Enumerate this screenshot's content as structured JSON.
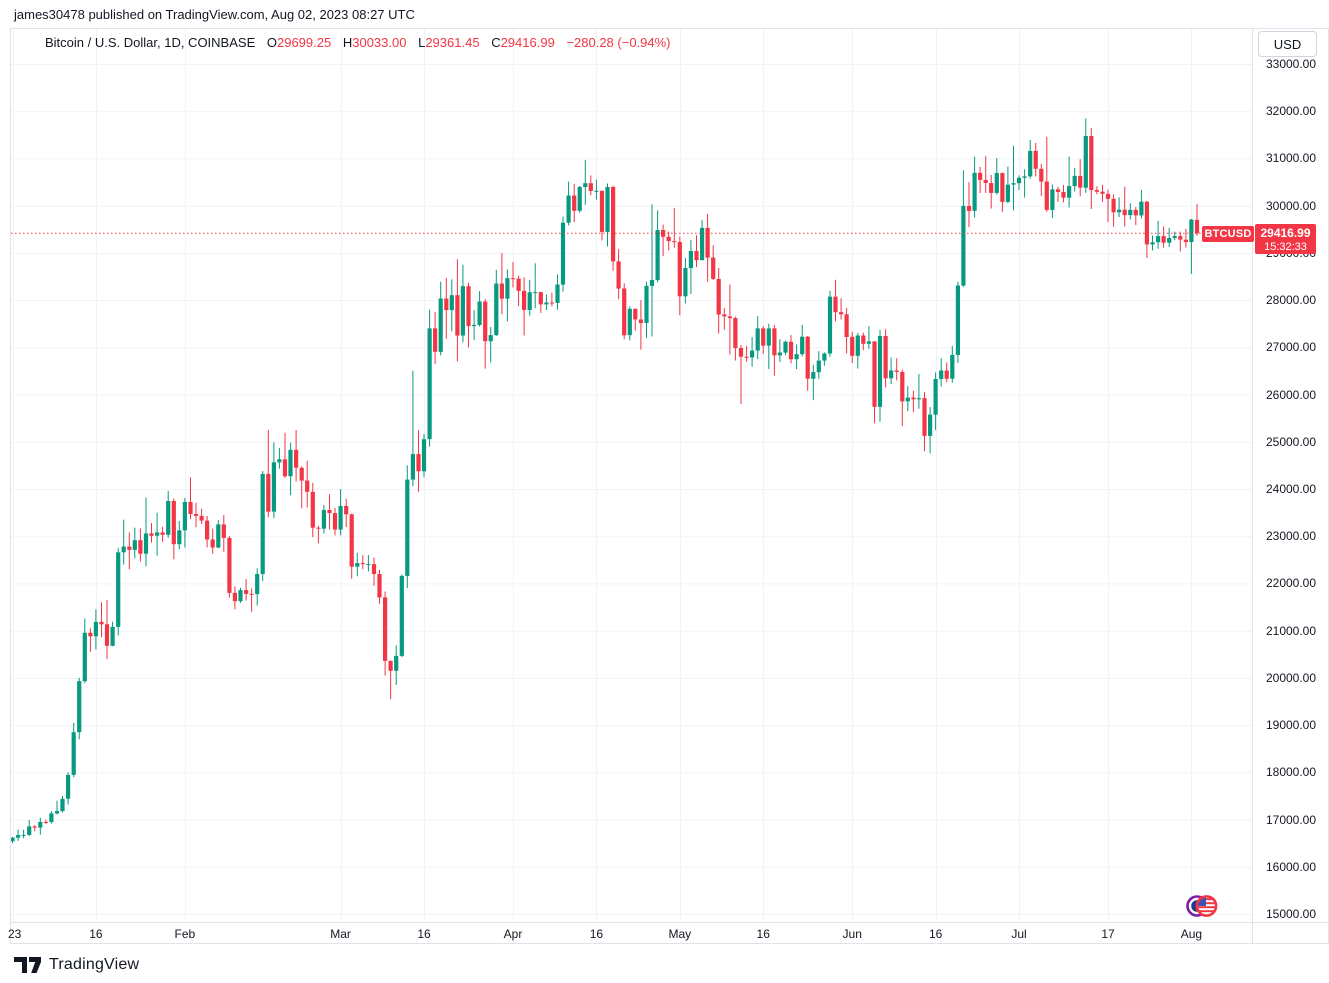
{
  "attribution": "james30478 published on TradingView.com, Aug 02, 2023 08:27 UTC",
  "header": {
    "symbol_title": "Bitcoin / U.S. Dollar, 1D, COINBASE",
    "ohlc": {
      "open_label": "O",
      "open": "29699.25",
      "high_label": "H",
      "high": "30033.00",
      "low_label": "L",
      "low": "29361.45",
      "close_label": "C",
      "close": "29416.99",
      "change": "−280.28 (−0.94%)"
    }
  },
  "price_axis": {
    "currency_button": "USD",
    "tick_labels": [
      "33000.00",
      "32000.00",
      "31000.00",
      "30000.00",
      "29000.00",
      "28000.00",
      "27000.00",
      "26000.00",
      "25000.00",
      "24000.00",
      "23000.00",
      "22000.00",
      "21000.00",
      "20000.00",
      "19000.00",
      "18000.00",
      "17000.00",
      "16000.00",
      "15000.00"
    ],
    "last_price_label": {
      "symbol": "BTCUSD",
      "price": "29416.99",
      "countdown": "15:32:33"
    }
  },
  "footer": {
    "brand": "TradingView"
  },
  "colors": {
    "up": "#089981",
    "down": "#f23645",
    "grid": "#f0f3fa",
    "frame": "#e0e3eb",
    "text": "#131722",
    "last_price_line": "#f23645",
    "tag_bg": "#f23645"
  },
  "chart_data": {
    "type": "candlestick",
    "title": "Bitcoin / U.S. Dollar, 1D, COINBASE",
    "symbol": "BTCUSD",
    "exchange": "COINBASE",
    "interval": "1D",
    "start_date": "2023-01-01",
    "end_date": "2023-08-02",
    "ylim": [
      15000,
      33000
    ],
    "y_ticks": [
      33000,
      32000,
      31000,
      30000,
      29000,
      28000,
      27000,
      26000,
      25000,
      24000,
      23000,
      22000,
      21000,
      20000,
      19000,
      18000,
      17000,
      16000,
      15000
    ],
    "x_ticks": [
      {
        "day": 0,
        "label": "23"
      },
      {
        "day": 15,
        "label": "16"
      },
      {
        "day": 31,
        "label": "Feb"
      },
      {
        "day": 59,
        "label": "Mar"
      },
      {
        "day": 74,
        "label": "16"
      },
      {
        "day": 90,
        "label": "Apr"
      },
      {
        "day": 105,
        "label": "16"
      },
      {
        "day": 120,
        "label": "May"
      },
      {
        "day": 135,
        "label": "16"
      },
      {
        "day": 151,
        "label": "Jun"
      },
      {
        "day": 166,
        "label": "16"
      },
      {
        "day": 181,
        "label": "Jul"
      },
      {
        "day": 197,
        "label": "17"
      },
      {
        "day": 212,
        "label": "Aug"
      }
    ],
    "last_price": 29416.99,
    "grid": true,
    "candles_format": [
      "open",
      "high",
      "low",
      "close"
    ],
    "candles": [
      [
        16540,
        16630,
        16500,
        16615
      ],
      [
        16615,
        16790,
        16550,
        16670
      ],
      [
        16670,
        16780,
        16600,
        16675
      ],
      [
        16675,
        16990,
        16650,
        16855
      ],
      [
        16855,
        16880,
        16750,
        16830
      ],
      [
        16830,
        17040,
        16680,
        16950
      ],
      [
        16950,
        17000,
        16910,
        16945
      ],
      [
        16945,
        17180,
        16915,
        17130
      ],
      [
        17130,
        17400,
        17110,
        17180
      ],
      [
        17180,
        17500,
        17150,
        17440
      ],
      [
        17440,
        18000,
        17315,
        17945
      ],
      [
        17945,
        19050,
        17900,
        18850
      ],
      [
        18850,
        20000,
        18700,
        19930
      ],
      [
        19930,
        21260,
        19890,
        20955
      ],
      [
        20955,
        21050,
        20550,
        20880
      ],
      [
        20880,
        21450,
        20600,
        21185
      ],
      [
        21185,
        21600,
        20860,
        21135
      ],
      [
        21135,
        21650,
        20400,
        20680
      ],
      [
        20680,
        21190,
        20670,
        21080
      ],
      [
        21080,
        22755,
        20900,
        22660
      ],
      [
        22660,
        23350,
        22400,
        22780
      ],
      [
        22780,
        23080,
        22300,
        22710
      ],
      [
        22710,
        23180,
        22530,
        22915
      ],
      [
        22915,
        23165,
        22465,
        22630
      ],
      [
        22630,
        23820,
        22360,
        23060
      ],
      [
        23060,
        23280,
        22865,
        23010
      ],
      [
        23010,
        23500,
        22590,
        23080
      ],
      [
        23080,
        23200,
        22880,
        23030
      ],
      [
        23030,
        23960,
        22970,
        23745
      ],
      [
        23745,
        23800,
        22510,
        22830
      ],
      [
        22830,
        23320,
        22720,
        23125
      ],
      [
        23125,
        23810,
        22760,
        23725
      ],
      [
        23725,
        24250,
        23370,
        23470
      ],
      [
        23470,
        23710,
        23190,
        23430
      ],
      [
        23430,
        23580,
        23260,
        23330
      ],
      [
        23330,
        23430,
        22760,
        22930
      ],
      [
        22930,
        23160,
        22630,
        22760
      ],
      [
        22760,
        23340,
        22745,
        23250
      ],
      [
        23250,
        23450,
        22670,
        22965
      ],
      [
        22965,
        23010,
        21700,
        21800
      ],
      [
        21800,
        21940,
        21450,
        21625
      ],
      [
        21625,
        21905,
        21590,
        21860
      ],
      [
        21860,
        22090,
        21640,
        21780
      ],
      [
        21780,
        21895,
        21400,
        21775
      ],
      [
        21775,
        22320,
        21530,
        22200
      ],
      [
        22200,
        24380,
        22050,
        24320
      ],
      [
        24320,
        25250,
        23400,
        23520
      ],
      [
        23520,
        24990,
        23380,
        24565
      ],
      [
        24565,
        24870,
        24430,
        24630
      ],
      [
        24630,
        25190,
        24230,
        24270
      ],
      [
        24270,
        24980,
        23870,
        24830
      ],
      [
        24830,
        25250,
        24160,
        24450
      ],
      [
        24450,
        24480,
        23590,
        24180
      ],
      [
        24180,
        24600,
        23610,
        23940
      ],
      [
        23940,
        24130,
        22980,
        23180
      ],
      [
        23180,
        23220,
        22850,
        23160
      ],
      [
        23160,
        23660,
        23060,
        23555
      ],
      [
        23555,
        23890,
        23140,
        23490
      ],
      [
        23490,
        23600,
        23020,
        23140
      ],
      [
        23140,
        24000,
        23020,
        23640
      ],
      [
        23640,
        23790,
        23195,
        23465
      ],
      [
        23465,
        23480,
        22100,
        22355
      ],
      [
        22355,
        22650,
        22155,
        22430
      ],
      [
        22430,
        22600,
        22300,
        22410
      ],
      [
        22410,
        22600,
        22255,
        22410
      ],
      [
        22410,
        22550,
        21950,
        22200
      ],
      [
        22200,
        22290,
        21570,
        21705
      ],
      [
        21705,
        21830,
        20050,
        20360
      ],
      [
        20360,
        20370,
        19550,
        20150
      ],
      [
        20150,
        20690,
        19850,
        20465
      ],
      [
        20465,
        22190,
        20440,
        22160
      ],
      [
        22160,
        24500,
        21900,
        24200
      ],
      [
        24200,
        26500,
        24060,
        24740
      ],
      [
        24740,
        25240,
        23940,
        24375
      ],
      [
        24375,
        25165,
        24250,
        25055
      ],
      [
        25055,
        27800,
        24900,
        27400
      ],
      [
        27400,
        27750,
        26650,
        26905
      ],
      [
        26905,
        28390,
        26830,
        28035
      ],
      [
        28035,
        28470,
        27180,
        27790
      ],
      [
        27790,
        28440,
        27340,
        28105
      ],
      [
        28105,
        28865,
        26700,
        27250
      ],
      [
        27250,
        28750,
        27105,
        28295
      ],
      [
        28295,
        28370,
        27000,
        27450
      ],
      [
        27450,
        27790,
        27155,
        27475
      ],
      [
        27475,
        28190,
        27440,
        27970
      ],
      [
        27970,
        28020,
        26550,
        27130
      ],
      [
        27130,
        27430,
        26680,
        27260
      ],
      [
        27260,
        28640,
        27240,
        28350
      ],
      [
        28350,
        29000,
        27700,
        28030
      ],
      [
        28030,
        28650,
        27550,
        28465
      ],
      [
        28465,
        28810,
        28270,
        28455
      ],
      [
        28455,
        28520,
        27870,
        28195
      ],
      [
        28195,
        28480,
        27250,
        27790
      ],
      [
        27790,
        28430,
        27670,
        28165
      ],
      [
        28165,
        28780,
        27830,
        28170
      ],
      [
        28170,
        28180,
        27730,
        27910
      ],
      [
        27910,
        28120,
        27790,
        27950
      ],
      [
        27950,
        28160,
        27870,
        27940
      ],
      [
        27940,
        28540,
        27800,
        28330
      ],
      [
        28330,
        29770,
        28180,
        29640
      ],
      [
        29640,
        30510,
        29580,
        30215
      ],
      [
        30215,
        30460,
        29650,
        29890
      ],
      [
        29890,
        30420,
        29850,
        30395
      ],
      [
        30395,
        30970,
        30020,
        30475
      ],
      [
        30475,
        30640,
        30220,
        30310
      ],
      [
        30310,
        30550,
        30130,
        30315
      ],
      [
        30315,
        30320,
        29270,
        29445
      ],
      [
        29445,
        30470,
        29135,
        30395
      ],
      [
        30395,
        30420,
        28620,
        28820
      ],
      [
        28820,
        29080,
        28020,
        28245
      ],
      [
        28245,
        28355,
        27170,
        27255
      ],
      [
        27255,
        27870,
        27150,
        27815
      ],
      [
        27815,
        27820,
        27350,
        27590
      ],
      [
        27590,
        28000,
        26950,
        27515
      ],
      [
        27515,
        28390,
        27200,
        28300
      ],
      [
        28300,
        30030,
        27230,
        28425
      ],
      [
        28425,
        29900,
        28380,
        29485
      ],
      [
        29485,
        29600,
        28930,
        29340
      ],
      [
        29340,
        29450,
        29050,
        29250
      ],
      [
        29250,
        29950,
        29110,
        29230
      ],
      [
        29230,
        29340,
        27680,
        28080
      ],
      [
        28080,
        28890,
        27930,
        28680
      ],
      [
        28680,
        29270,
        28130,
        29040
      ],
      [
        29040,
        29370,
        28700,
        28845
      ],
      [
        28845,
        29700,
        28840,
        29530
      ],
      [
        29530,
        29830,
        28390,
        28900
      ],
      [
        28900,
        29160,
        28430,
        28450
      ],
      [
        28450,
        28680,
        27290,
        27695
      ],
      [
        27695,
        27830,
        27370,
        27655
      ],
      [
        27655,
        28330,
        26850,
        27620
      ],
      [
        27620,
        27650,
        26720,
        26985
      ],
      [
        26985,
        27050,
        25800,
        26800
      ],
      [
        26800,
        27030,
        26690,
        26785
      ],
      [
        26785,
        27215,
        26590,
        26930
      ],
      [
        26930,
        27660,
        26750,
        27400
      ],
      [
        27400,
        27450,
        26860,
        27035
      ],
      [
        27035,
        27500,
        26540,
        27400
      ],
      [
        27400,
        27475,
        26400,
        26830
      ],
      [
        26830,
        27170,
        26690,
        26890
      ],
      [
        26890,
        27140,
        26835,
        27120
      ],
      [
        27120,
        27260,
        26660,
        26750
      ],
      [
        26750,
        27060,
        26540,
        26855
      ],
      [
        26855,
        27475,
        26805,
        27225
      ],
      [
        27225,
        27240,
        26080,
        26335
      ],
      [
        26335,
        26625,
        25880,
        26475
      ],
      [
        26475,
        26920,
        26335,
        26720
      ],
      [
        26720,
        26890,
        26610,
        26870
      ],
      [
        26870,
        28200,
        26800,
        28075
      ],
      [
        28075,
        28430,
        27550,
        27745
      ],
      [
        27745,
        28040,
        27590,
        27700
      ],
      [
        27700,
        27830,
        26870,
        27220
      ],
      [
        27220,
        27330,
        26670,
        26820
      ],
      [
        26820,
        27305,
        26550,
        27250
      ],
      [
        27250,
        27310,
        26940,
        27075
      ],
      [
        27075,
        27450,
        26970,
        27125
      ],
      [
        27125,
        27130,
        25390,
        25740
      ],
      [
        25740,
        27370,
        25425,
        27240
      ],
      [
        27240,
        27385,
        26150,
        26345
      ],
      [
        26345,
        26785,
        26220,
        26510
      ],
      [
        26510,
        26770,
        26300,
        26480
      ],
      [
        26480,
        26530,
        25330,
        25855
      ],
      [
        25855,
        26180,
        25650,
        25935
      ],
      [
        25935,
        26080,
        25630,
        25900
      ],
      [
        25900,
        26435,
        25700,
        25925
      ],
      [
        25925,
        26050,
        24800,
        25125
      ],
      [
        25125,
        25735,
        24755,
        25575
      ],
      [
        25575,
        26470,
        25250,
        26330
      ],
      [
        26330,
        26770,
        26170,
        26510
      ],
      [
        26510,
        26680,
        26260,
        26335
      ],
      [
        26335,
        27030,
        26250,
        26840
      ],
      [
        26840,
        28390,
        26670,
        28310
      ],
      [
        28310,
        30750,
        28280,
        29995
      ],
      [
        29995,
        30500,
        29550,
        29890
      ],
      [
        29890,
        31040,
        29750,
        30695
      ],
      [
        30695,
        30820,
        30265,
        30545
      ],
      [
        30545,
        31050,
        30270,
        30480
      ],
      [
        30480,
        30650,
        29940,
        30270
      ],
      [
        30270,
        31010,
        30235,
        30690
      ],
      [
        30690,
        30700,
        29870,
        30080
      ],
      [
        30080,
        30830,
        30050,
        30445
      ],
      [
        30445,
        31270,
        29900,
        30475
      ],
      [
        30475,
        30640,
        30330,
        30590
      ],
      [
        30590,
        30770,
        30170,
        30620
      ],
      [
        30620,
        31390,
        30570,
        31160
      ],
      [
        31160,
        31330,
        30620,
        30780
      ],
      [
        30780,
        30880,
        30200,
        30510
      ],
      [
        30510,
        31460,
        29870,
        29910
      ],
      [
        29910,
        30450,
        29740,
        30345
      ],
      [
        30345,
        30400,
        30080,
        30290
      ],
      [
        30290,
        30440,
        30070,
        30170
      ],
      [
        30170,
        31040,
        29960,
        30415
      ],
      [
        30415,
        30800,
        30300,
        30630
      ],
      [
        30630,
        30985,
        30200,
        30380
      ],
      [
        30380,
        31850,
        30270,
        31475
      ],
      [
        31475,
        31640,
        29930,
        30330
      ],
      [
        30330,
        30410,
        30240,
        30295
      ],
      [
        30295,
        30440,
        30080,
        30250
      ],
      [
        30250,
        30340,
        29650,
        30145
      ],
      [
        30145,
        30240,
        29550,
        29860
      ],
      [
        29860,
        30180,
        29760,
        29915
      ],
      [
        29915,
        30400,
        29560,
        29800
      ],
      [
        29800,
        30050,
        29710,
        29910
      ],
      [
        29910,
        29970,
        29590,
        29795
      ],
      [
        29795,
        30335,
        29730,
        30085
      ],
      [
        30085,
        30100,
        28890,
        29180
      ],
      [
        29180,
        29370,
        29050,
        29225
      ],
      [
        29225,
        29680,
        29090,
        29355
      ],
      [
        29355,
        29560,
        29110,
        29215
      ],
      [
        29215,
        29530,
        29125,
        29315
      ],
      [
        29315,
        29450,
        29270,
        29355
      ],
      [
        29355,
        29450,
        29030,
        29280
      ],
      [
        29280,
        29510,
        29110,
        29230
      ],
      [
        29230,
        29720,
        28555,
        29705
      ],
      [
        29699.25,
        30033,
        29361.45,
        29416.99
      ]
    ]
  }
}
